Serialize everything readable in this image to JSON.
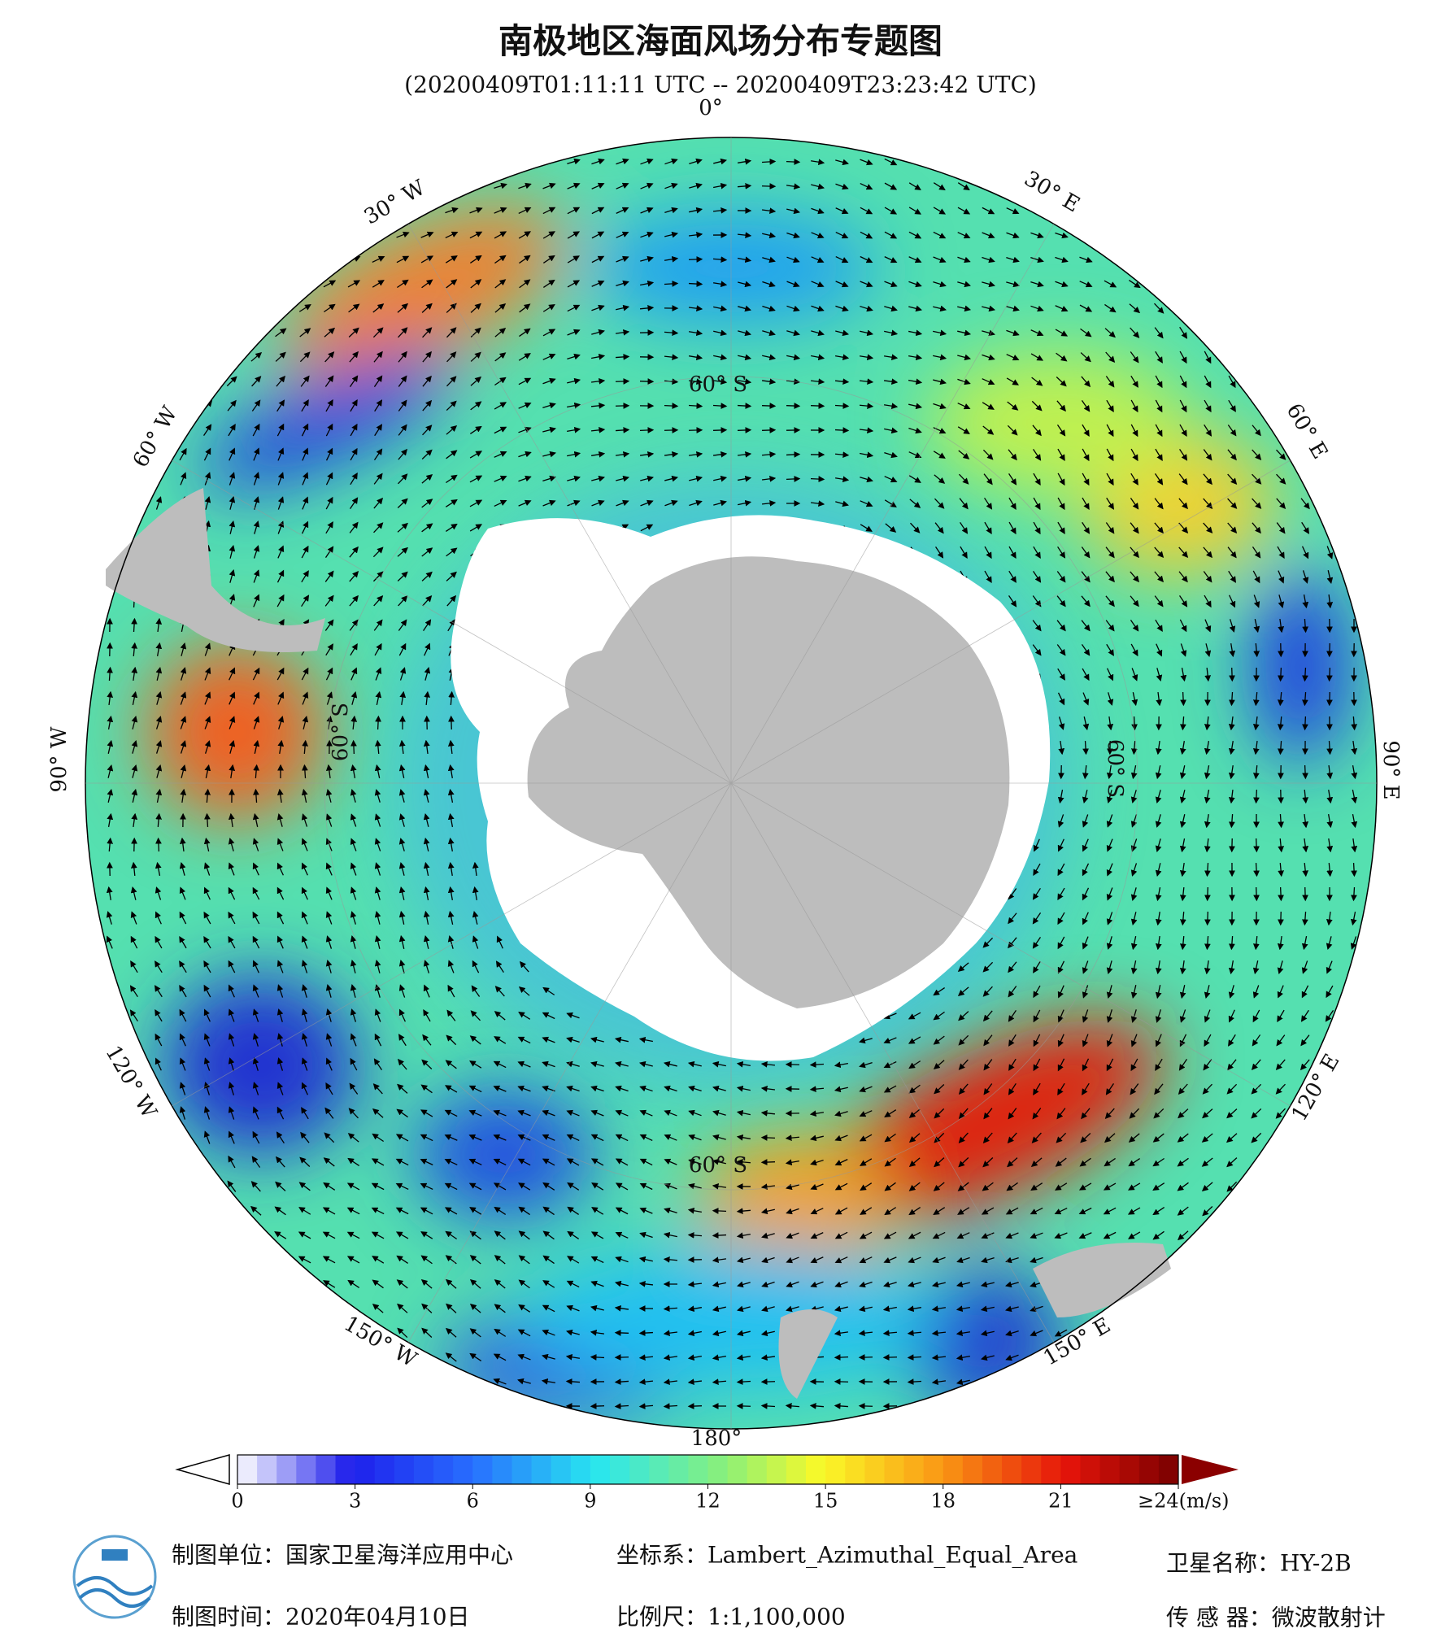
{
  "title": "南极地区海面风场分布专题图",
  "subtitle": "(20200409T01:11:11 UTC -- 20200409T23:23:42 UTC)",
  "map": {
    "longitude_labels": [
      "0°",
      "30° E",
      "60° E",
      "90° E",
      "120° E",
      "150° E",
      "180°",
      "150° W",
      "120° W",
      "90° W",
      "60° W",
      "30° W"
    ],
    "latitude_labels": [
      "60° S",
      "60° S",
      "60° S",
      "60° S"
    ]
  },
  "colorbar": {
    "lim": [
      0,
      24
    ],
    "ticks": [
      0,
      3,
      6,
      9,
      12,
      15,
      18,
      21,
      {
        "value": 24,
        "label": "≥24(m/s)"
      }
    ]
  },
  "footer": {
    "producer": "制图单位：国家卫星海洋应用中心",
    "date": "制图时间：2020年04月10日",
    "projection": "坐标系：Lambert_Azimuthal_Equal_Area",
    "scale": "比例尺：1:1,100,000",
    "satellite": "卫星名称：HY-2B",
    "sensor": "传 感 器：微波散射计"
  }
}
